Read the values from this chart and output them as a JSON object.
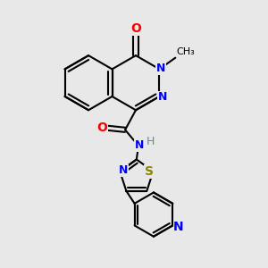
{
  "bg_color": "#e8e8e8",
  "bond_color": "#000000",
  "bond_width": 1.5,
  "figsize": [
    3.0,
    3.0
  ],
  "dpi": 100,
  "xlim": [
    0.0,
    5.5
  ],
  "ylim": [
    0.5,
    7.5
  ]
}
